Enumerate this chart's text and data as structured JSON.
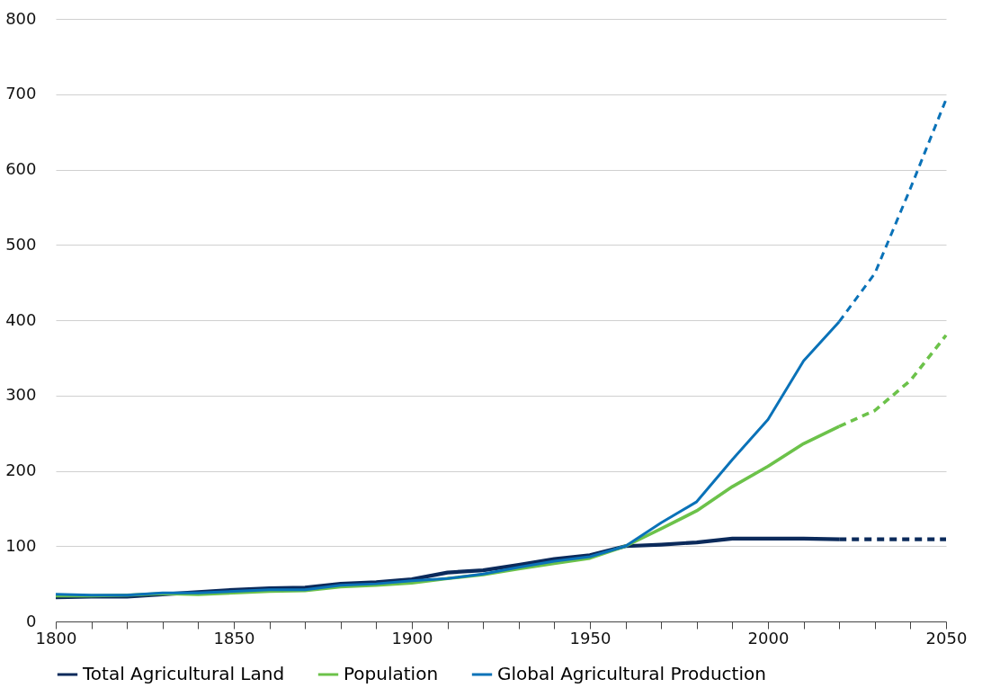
{
  "chart_data": {
    "type": "line",
    "xlim": [
      1800,
      2050
    ],
    "ylim": [
      0,
      800
    ],
    "xticks": [
      1800,
      {
        "value": 1810,
        "label": null
      },
      {
        "value": 1820,
        "label": null
      },
      {
        "value": 1830,
        "label": null
      },
      {
        "value": 1840,
        "label": null
      },
      1850,
      {
        "value": 1860,
        "label": null
      },
      {
        "value": 1870,
        "label": null
      },
      {
        "value": 1880,
        "label": null
      },
      {
        "value": 1890,
        "label": null
      },
      1900,
      {
        "value": 1910,
        "label": null
      },
      {
        "value": 1920,
        "label": null
      },
      {
        "value": 1930,
        "label": null
      },
      {
        "value": 1940,
        "label": null
      },
      1950,
      {
        "value": 1960,
        "label": null
      },
      {
        "value": 1970,
        "label": null
      },
      {
        "value": 1980,
        "label": null
      },
      {
        "value": 1990,
        "label": null
      },
      2000,
      {
        "value": 2010,
        "label": null
      },
      {
        "value": 2020,
        "label": null
      },
      {
        "value": 2030,
        "label": null
      },
      {
        "value": 2040,
        "label": null
      },
      2050
    ],
    "yticks": [
      0,
      100,
      200,
      300,
      400,
      500,
      600,
      700,
      800
    ],
    "grid": "y",
    "legend": "bottom",
    "line_style": "solid",
    "marker": "none",
    "series": [
      {
        "name": "Total Agricultural Land",
        "color": "#0b2a5b",
        "x": [
          1800,
          1810,
          1820,
          1830,
          1840,
          1850,
          1860,
          1870,
          1880,
          1890,
          1900,
          1910,
          1920,
          1930,
          1940,
          1950,
          1960,
          1970,
          1980,
          1990,
          2000,
          2010,
          2020
        ],
        "values": [
          32,
          33,
          33,
          36,
          39,
          42,
          44,
          45,
          50,
          52,
          56,
          65,
          68,
          75,
          83,
          88,
          100,
          102,
          105,
          110,
          110,
          110,
          109
        ]
      },
      {
        "name": "Population",
        "color": "#6cc24a",
        "x": [
          1800,
          1810,
          1820,
          1830,
          1840,
          1850,
          1860,
          1870,
          1880,
          1890,
          1900,
          1910,
          1920,
          1930,
          1940,
          1950,
          1960,
          1970,
          1980,
          1990,
          2000,
          2010,
          2020
        ],
        "values": [
          34,
          34,
          35,
          37,
          36,
          38,
          40,
          41,
          46,
          48,
          51,
          57,
          62,
          70,
          77,
          84,
          100,
          123,
          147,
          179,
          206,
          236,
          259
        ]
      },
      {
        "name": "Global Agricultural Production",
        "color": "#0a72b8",
        "x": [
          1800,
          1810,
          1820,
          1830,
          1840,
          1850,
          1860,
          1870,
          1880,
          1890,
          1900,
          1910,
          1920,
          1930,
          1940,
          1950,
          1960,
          1970,
          1980,
          1990,
          2000,
          2010,
          2020
        ],
        "values": [
          36,
          35,
          35,
          38,
          38,
          40,
          42,
          42,
          48,
          50,
          54,
          57,
          63,
          72,
          80,
          86,
          100,
          131,
          159,
          215,
          268,
          346,
          398
        ]
      },
      {
        "color": "#0b2a5b",
        "line_style": "dashed",
        "x": [
          2020,
          2030,
          2040,
          2050
        ],
        "values": [
          109,
          109,
          109,
          109
        ]
      },
      {
        "color": "#6cc24a",
        "line_style": "dashed",
        "x": [
          2020,
          2030,
          2040,
          2050
        ],
        "values": [
          259,
          280,
          320,
          380
        ]
      },
      {
        "color": "#0a72b8",
        "line_style": "dashed",
        "x": [
          2020,
          2030,
          2040,
          2050
        ],
        "values": [
          398,
          462,
          575,
          693
        ]
      }
    ]
  }
}
